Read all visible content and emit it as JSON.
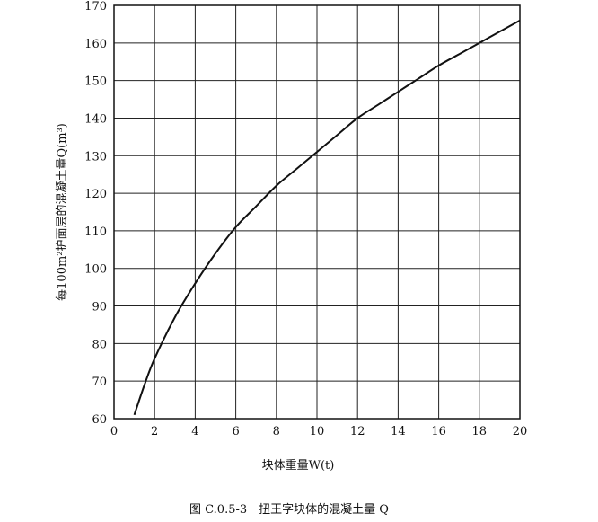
{
  "chart_data": {
    "type": "line",
    "xlabel": "块体重量W(t)",
    "ylabel": "每100m²护面层的混凝土量Q(m³)",
    "caption": "图 C.0.5-3　扭王字块体的混凝土量 Q",
    "xlim": [
      0,
      20
    ],
    "ylim": [
      60,
      170
    ],
    "x_ticks": [
      0,
      2,
      4,
      6,
      8,
      10,
      12,
      14,
      16,
      18,
      20
    ],
    "y_ticks": [
      60,
      70,
      80,
      90,
      100,
      110,
      120,
      130,
      140,
      150,
      160,
      170
    ],
    "grid": true,
    "series": [
      {
        "x": [
          1,
          1.5,
          2,
          3,
          4,
          5,
          6,
          7,
          8,
          9,
          10,
          11,
          12,
          13,
          14,
          15,
          16,
          17,
          18,
          19,
          20
        ],
        "y": [
          61,
          69,
          76,
          87,
          96,
          104,
          111,
          116.5,
          122,
          126.5,
          131,
          135.5,
          140,
          143.5,
          147,
          150.5,
          154,
          157,
          160,
          163,
          166
        ]
      }
    ]
  }
}
